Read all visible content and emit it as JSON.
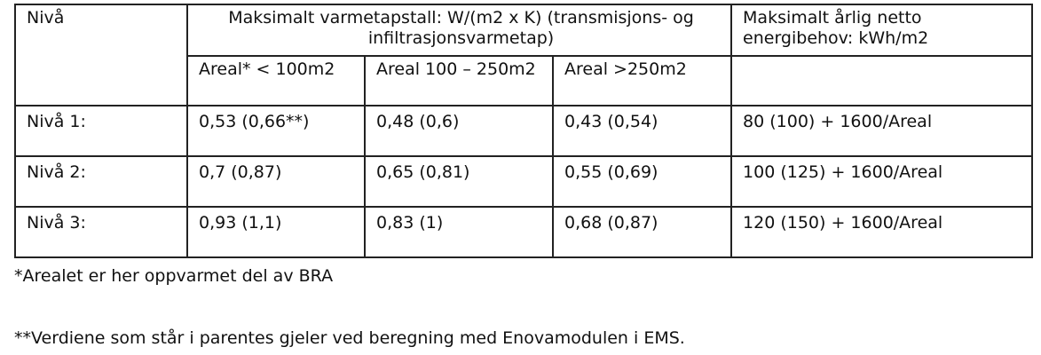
{
  "table": {
    "header": [
      "Nivå",
      "Maksimalt varmetapstall: W/(m2 x K) (transmisjons- og infiltrasjonsvarmetap)",
      "Maksimalt årlig netto energibehov: kWh/m2"
    ],
    "subheader": [
      "Areal* < 100m2",
      "Areal 100 – 250m2",
      "Areal >250m2"
    ],
    "rows": [
      [
        "Nivå 1:",
        "0,53 (0,66**)",
        "0,48 (0,6)",
        "0,43 (0,54)",
        "80 (100) + 1600/Areal"
      ],
      [
        "Nivå 2:",
        "0,7 (0,87)",
        "0,65 (0,81)",
        "0,55 (0,69)",
        "100 (125) + 1600/Areal"
      ],
      [
        "Nivå 3:",
        "0,93 (1,1)",
        "0,83 (1)",
        "0,68 (0,87)",
        "120 (150) + 1600/Areal"
      ]
    ]
  },
  "footnotes": [
    "*Arealet er her oppvarmet del av BRA",
    "**Verdiene som står i parentes gjeler ved beregning med Enovamodulen i EMS."
  ]
}
